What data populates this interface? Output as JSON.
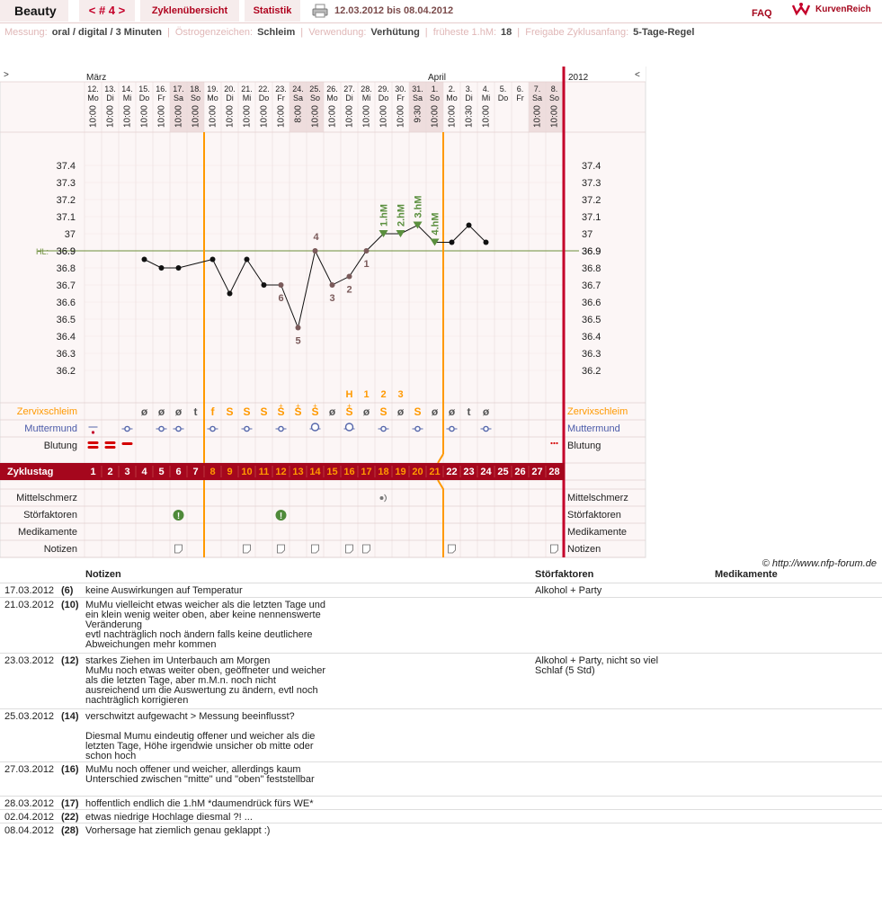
{
  "header": {
    "title": "Beauty",
    "nav": "< # 4 >",
    "tab_overview": "Zyklenübersicht",
    "tab_stats": "Statistik",
    "date_range": "12.03.2012 bis 08.04.2012",
    "faq": "FAQ",
    "brand": "KurvenReich"
  },
  "info": {
    "measure_label": "Messung:",
    "measure_value": "oral / digital / 3 Minuten",
    "estrogen_label": "Östrogenzeichen:",
    "estrogen_value": "Schleim",
    "use_label": "Verwendung:",
    "use_value": "Verhütung",
    "early_label": "früheste 1.hM:",
    "early_value": "18",
    "release_label": "Freigabe Zyklusanfang:",
    "release_value": "5-Tage-Regel"
  },
  "chart_data": {
    "type": "line",
    "title": "",
    "month_labels": [
      "März",
      "April"
    ],
    "year_label": "2012",
    "nav_left": ">",
    "nav_right": "<",
    "cycle_days": [
      1,
      2,
      3,
      4,
      5,
      6,
      7,
      8,
      9,
      10,
      11,
      12,
      13,
      14,
      15,
      16,
      17,
      18,
      19,
      20,
      21,
      22,
      23,
      24,
      25,
      26,
      27,
      28
    ],
    "dates": [
      "12.",
      "13.",
      "14.",
      "15.",
      "16.",
      "17.",
      "18.",
      "19.",
      "20.",
      "21.",
      "22.",
      "23.",
      "24.",
      "25.",
      "26.",
      "27.",
      "28.",
      "29.",
      "30.",
      "31.",
      "1.",
      "2.",
      "3.",
      "4.",
      "5.",
      "6.",
      "7.",
      "8."
    ],
    "weekdays": [
      "Mo",
      "Di",
      "Mi",
      "Do",
      "Fr",
      "Sa",
      "So",
      "Mo",
      "Di",
      "Mi",
      "Do",
      "Fr",
      "Sa",
      "So",
      "Mo",
      "Di",
      "Mi",
      "Do",
      "Fr",
      "Sa",
      "So",
      "Mo",
      "Di",
      "Mi",
      "Do",
      "Fr",
      "Sa",
      "So"
    ],
    "times": [
      "10:00",
      "10:00",
      "10:00",
      "10:00",
      "10:00",
      "10:00",
      "10:00",
      "10:00",
      "10:00",
      "10:00",
      "10:00",
      "10:00",
      "8:00",
      "10:00",
      "10:00",
      "10:00",
      "10:00",
      "10:00",
      "10:00",
      "9:30",
      "10:00",
      "10:00",
      "10:30",
      "10:00",
      "",
      "",
      "10:00",
      "10:00"
    ],
    "temperatures": [
      null,
      null,
      null,
      36.85,
      36.8,
      36.8,
      null,
      36.85,
      36.65,
      36.85,
      36.7,
      36.7,
      36.45,
      36.9,
      36.7,
      36.75,
      36.9,
      37.0,
      37.0,
      37.05,
      36.95,
      36.95,
      37.05,
      36.95,
      null,
      null,
      null,
      null
    ],
    "y_ticks": [
      37.4,
      37.3,
      37.2,
      37.1,
      37.0,
      36.9,
      36.8,
      36.7,
      36.6,
      36.5,
      36.4,
      36.3,
      36.2
    ],
    "ylim": [
      36.1,
      37.5
    ],
    "coverline": 36.9,
    "coverline_label": "HL:",
    "low_labels": [
      {
        "day": 12,
        "text": "6"
      },
      {
        "day": 13,
        "text": "5"
      },
      {
        "day": 14,
        "text": "4"
      },
      {
        "day": 15,
        "text": "3"
      },
      {
        "day": 16,
        "text": "2"
      },
      {
        "day": 17,
        "text": "1"
      }
    ],
    "high_labels": [
      {
        "day": 18,
        "text": "1.hM"
      },
      {
        "day": 19,
        "text": "2.hM"
      },
      {
        "day": 20,
        "text": "3.hM"
      },
      {
        "day": 21,
        "text": "4.hM"
      }
    ],
    "peak_labels": [
      {
        "day": 16,
        "text": "H"
      },
      {
        "day": 17,
        "text": "1"
      },
      {
        "day": 18,
        "text": "2"
      },
      {
        "day": 19,
        "text": "3"
      }
    ],
    "cervical_mucus_label": "Zervixschleim",
    "cervical_mucus": [
      "",
      "",
      "",
      "ø",
      "ø",
      "ø",
      "t",
      "f",
      "S",
      "S",
      "S",
      "S+",
      "S+",
      "S+",
      "ø",
      "S+",
      "ø",
      "S",
      "ø",
      "S",
      "ø",
      "ø",
      "t",
      "ø",
      "",
      "",
      "",
      ""
    ],
    "cervix_label": "Muttermund",
    "cervix": [
      "low",
      "",
      "mid",
      "",
      "mid",
      "mid",
      "",
      "mid",
      "",
      "mid",
      "",
      "mid",
      "",
      "mid-open",
      "",
      "mid-open",
      "",
      "mid",
      "",
      "mid",
      "",
      "mid",
      "",
      "mid",
      "",
      "",
      "",
      ""
    ],
    "bleeding_label": "Blutung",
    "bleeding": [
      "heavy",
      "heavy",
      "medium",
      "",
      "",
      "",
      "",
      "",
      "",
      "",
      "",
      "",
      "",
      "",
      "",
      "",
      "",
      "",
      "",
      "",
      "",
      "",
      "",
      "",
      "",
      "",
      "",
      "spotting"
    ],
    "cycle_day_label": "Zyklustag",
    "fertile_days": [
      8,
      9,
      10,
      11,
      12,
      13,
      14,
      15,
      16,
      17,
      18,
      19,
      20,
      21
    ],
    "pain_label": "Mittelschmerz",
    "pain_days": [
      18
    ],
    "disturbance_label": "Störfaktoren",
    "disturbance_days": [
      6,
      12
    ],
    "medication_label": "Medikamente",
    "notes_label": "Notizen",
    "note_days": [
      6,
      10,
      12,
      14,
      16,
      17,
      22,
      28
    ],
    "colors": {
      "line": "#111111",
      "coverline": "#6b8e3a",
      "fertile": "#ff9900",
      "cycle_bar": "#a5071d",
      "high_label": "#5a8f3e",
      "low_label": "#7a5a5a"
    }
  },
  "copyright": "© http://www.nfp-forum.de",
  "notes_table": {
    "headers": {
      "notes": "Notizen",
      "disturbances": "Störfaktoren",
      "medication": "Medikamente"
    },
    "rows": [
      {
        "date": "17.03.2012",
        "day": "(6)",
        "note": "keine Auswirkungen auf Temperatur",
        "disturbance": "Alkohol + Party"
      },
      {
        "date": "21.03.2012",
        "day": "(10)",
        "note": "MuMu vielleicht etwas weicher als die letzten Tage und\nein klein wenig weiter oben, aber keine nennenswerte\nVeränderung\nevtl nachträglich noch ändern falls keine deutlichere\nAbweichungen mehr kommen",
        "disturbance": ""
      },
      {
        "date": "23.03.2012",
        "day": "(12)",
        "note": "starkes Ziehen im Unterbauch am Morgen\nMuMu noch etwas weiter oben, geöffneter und weicher\nals die letzten Tage, aber m.M.n. noch nicht\nausreichend um die Auswertung zu ändern, evtl noch\nnachträglich korrigieren",
        "disturbance": "Alkohol + Party, nicht so viel\nSchlaf (5 Std)"
      },
      {
        "date": "25.03.2012",
        "day": "(14)",
        "note": "verschwitzt aufgewacht > Messung beeinflusst?\n\nDiesmal Mumu eindeutig offener und weicher als die\nletzten Tage, Höhe irgendwie unsicher ob mitte oder\nschon hoch",
        "disturbance": ""
      },
      {
        "date": "27.03.2012",
        "day": "(16)",
        "note": "MuMu noch offener und weicher, allerdings kaum\nUnterschied zwischen \"mitte\" und \"oben\" feststellbar",
        "disturbance": ""
      },
      {
        "date": "28.03.2012",
        "day": "(17)",
        "note": "hoffentlich endlich die 1.hM *daumendrück fürs WE*",
        "disturbance": ""
      },
      {
        "date": "02.04.2012",
        "day": "(22)",
        "note": "etwas niedrige Hochlage diesmal ?! ...",
        "disturbance": ""
      },
      {
        "date": "08.04.2012",
        "day": "(28)",
        "note": "Vorhersage hat ziemlich genau geklappt :)",
        "disturbance": ""
      }
    ]
  }
}
